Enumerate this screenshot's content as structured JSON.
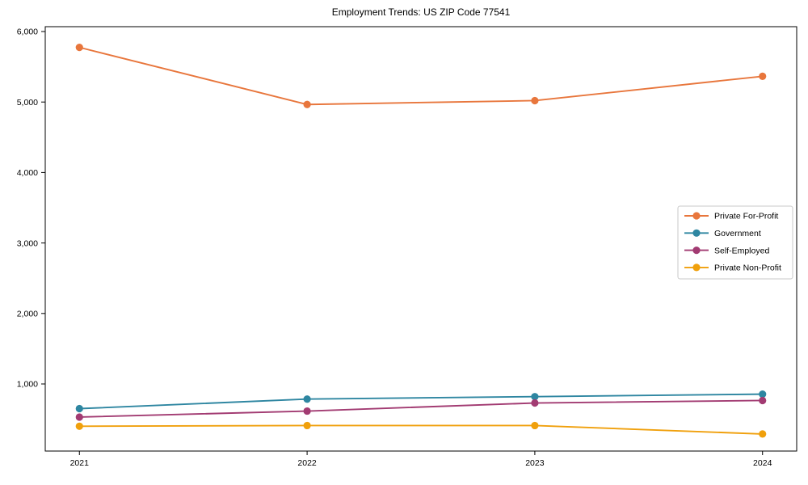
{
  "title": "Employment Trends: US ZIP Code 77541",
  "chart_data": {
    "type": "line",
    "title": "Employment Trends: US ZIP Code 77541",
    "xlabel": "",
    "ylabel": "",
    "categories": [
      "2021",
      "2022",
      "2023",
      "2024"
    ],
    "x": [
      2021,
      2022,
      2023,
      2024
    ],
    "series": [
      {
        "name": "Private For-Profit",
        "color": "#e8763c",
        "values": [
          5775,
          4965,
          5020,
          5365
        ]
      },
      {
        "name": "Government",
        "color": "#2e86a1",
        "values": [
          650,
          785,
          820,
          855
        ]
      },
      {
        "name": "Self-Employed",
        "color": "#a23b72",
        "values": [
          530,
          615,
          730,
          765
        ]
      },
      {
        "name": "Private Non-Profit",
        "color": "#f0a00c",
        "values": [
          400,
          410,
          410,
          290
        ]
      }
    ],
    "yticks": [
      1000,
      2000,
      3000,
      4000,
      5000,
      6000
    ],
    "ytick_labels": [
      "1,000",
      "2,000",
      "3,000",
      "4,000",
      "5,000",
      "6,000"
    ],
    "xlim": [
      2020.85,
      2024.15
    ],
    "ylim": [
      48,
      6069
    ],
    "grid": false,
    "marker": "circle",
    "legend_position": "center-right",
    "frame_color": "#000000",
    "legend_border_color": "#c9c9c9",
    "background_color": "#ffffff"
  }
}
